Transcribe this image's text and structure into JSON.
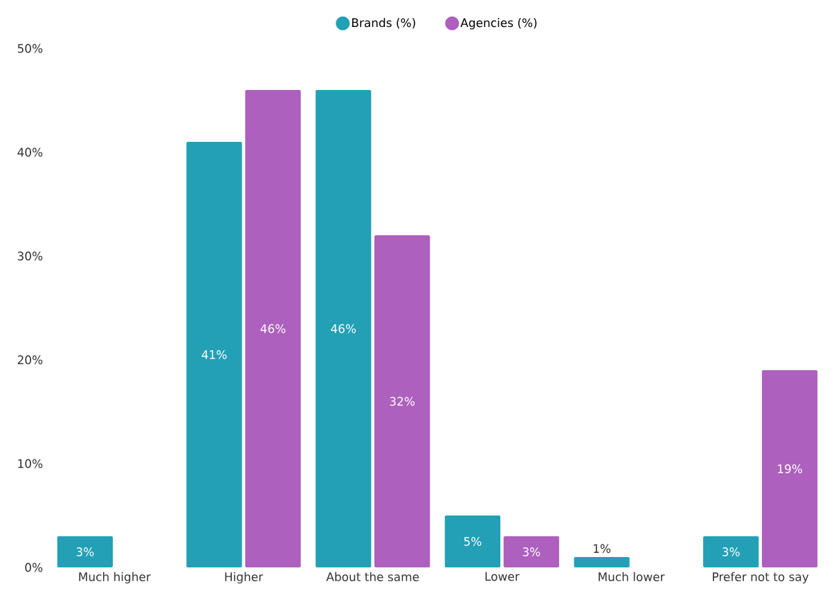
{
  "chart_data": {
    "type": "bar",
    "categories": [
      "Much higher",
      "Higher",
      "About the same",
      "Lower",
      "Much lower",
      "Prefer not to say"
    ],
    "series": [
      {
        "name": "Brands (%)",
        "color": "#23a0b5",
        "values": [
          3,
          41,
          46,
          5,
          1,
          3
        ],
        "value_labels": [
          "3%",
          "41%",
          "46%",
          "5%",
          "1%",
          "3%"
        ]
      },
      {
        "name": "Agencies (%)",
        "color": "#ad60bd",
        "values": [
          null,
          46,
          32,
          3,
          null,
          19
        ],
        "value_labels": [
          null,
          "46%",
          "32%",
          "3%",
          null,
          "19%"
        ]
      }
    ],
    "ylim": [
      0,
      50
    ],
    "yticks": [
      {
        "value": 0,
        "label": "0%"
      },
      {
        "value": 10,
        "label": "10%"
      },
      {
        "value": 20,
        "label": "20%"
      },
      {
        "value": 30,
        "label": "30%"
      },
      {
        "value": 40,
        "label": "40%"
      },
      {
        "value": 50,
        "label": "50%"
      }
    ],
    "legend": "top"
  }
}
